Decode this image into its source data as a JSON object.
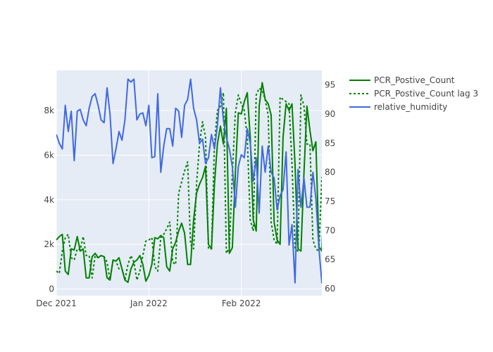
{
  "chart_data": {
    "type": "line",
    "title": "",
    "xlabel": "",
    "ylabel": "",
    "y2label": "",
    "x_range": [
      "2021-12-01",
      "2022-02-28"
    ],
    "x_ticks": [
      {
        "date": "2021-12-01",
        "label": "Dec 2021"
      },
      {
        "date": "2022-01-01",
        "label": "Jan 2022"
      },
      {
        "date": "2022-02-01",
        "label": "Feb 2022"
      }
    ],
    "y_left": {
      "range": [
        -300,
        9800
      ],
      "ticks": [
        0,
        2000,
        4000,
        6000,
        8000
      ],
      "tick_labels": [
        "0",
        "2k",
        "4k",
        "6k",
        "8k"
      ]
    },
    "y_right": {
      "range": [
        58.8,
        97.5
      ],
      "ticks": [
        60,
        65,
        70,
        75,
        80,
        85,
        90,
        95
      ],
      "tick_labels": [
        "60",
        "65",
        "70",
        "75",
        "80",
        "85",
        "90",
        "95"
      ]
    },
    "grid": true,
    "legend_position": "top-right outside",
    "background": "#E5ECF6",
    "series": [
      {
        "name": "PCR_Postive_Count",
        "axis": "left",
        "color": "#008000",
        "dash": "solid",
        "values": [
          2200,
          2350,
          2450,
          800,
          650,
          1800,
          1750,
          2350,
          1700,
          1800,
          500,
          500,
          1450,
          1600,
          1400,
          1500,
          1450,
          500,
          400,
          1300,
          1250,
          1400,
          900,
          400,
          300,
          900,
          1200,
          1300,
          1500,
          1100,
          350,
          600,
          1100,
          2300,
          2250,
          2400,
          2300,
          1000,
          800,
          1800,
          2100,
          2600,
          2950,
          2500,
          1100,
          1100,
          3100,
          4300,
          4700,
          5000,
          5500,
          2000,
          1800,
          4700,
          6500,
          7300,
          6500,
          8100,
          1600,
          1850,
          5200,
          7900,
          7850,
          8400,
          8800,
          6800,
          3100,
          2600,
          8200,
          9250,
          8500,
          8300,
          7800,
          3000,
          2200,
          2000,
          6800,
          8300,
          8000,
          8300,
          5600,
          1800,
          1700,
          5200,
          8200,
          7100,
          6200,
          6600,
          1900,
          1700,
          5000
        ]
      },
      {
        "name": "PCR_Postive_Count lag 3",
        "axis": "left",
        "color": "#008000",
        "dash": "dot",
        "values": [
          800,
          700,
          1700,
          2300,
          2450,
          1400,
          1300,
          1800,
          1750,
          2350,
          1500,
          1500,
          500,
          1500,
          1400,
          1500,
          1450,
          1200,
          400,
          1300,
          1250,
          900,
          900,
          400,
          1100,
          1500,
          1200,
          400,
          800,
          1500,
          2150,
          2200,
          2300,
          1000,
          800,
          2300,
          2450,
          2700,
          3000,
          1200,
          1100,
          4300,
          4800,
          5300,
          5700,
          2000,
          1800,
          4700,
          6500,
          7500,
          6800,
          1800,
          1800,
          6500,
          8000,
          8200,
          8800,
          1600,
          1850,
          5200,
          7900,
          8700,
          8300,
          8000,
          6800,
          3100,
          2600,
          8700,
          9000,
          8900,
          8500,
          7800,
          3000,
          2200,
          2000,
          8600,
          8500,
          8400,
          8300,
          5600,
          1800,
          1700,
          8700,
          8200,
          6500,
          6500,
          2200,
          1800,
          1700,
          5000,
          5000
        ]
      },
      {
        "name": "relative_humidity",
        "axis": "right",
        "color": "#4169E1",
        "dash": "solid",
        "values": [
          86.5,
          85.0,
          84.0,
          91.5,
          87.0,
          90.5,
          82.0,
          90.5,
          90.8,
          89.0,
          88.0,
          91.0,
          93.0,
          93.5,
          91.5,
          89.0,
          88.5,
          94.5,
          90.0,
          81.5,
          84.0,
          87.0,
          85.5,
          89.0,
          96.0,
          95.5,
          96.0,
          89.0,
          90.0,
          90.2,
          88.0,
          91.5,
          82.5,
          82.7,
          93.5,
          80.0,
          84.5,
          87.5,
          87.5,
          84.5,
          91.0,
          90.5,
          86.0,
          91.5,
          92.5,
          96.0,
          91.0,
          89.0,
          85.0,
          85.7,
          81.5,
          82.5,
          86.5,
          84.0,
          88.0,
          94.5,
          89.0,
          86.0,
          84.0,
          81.0,
          74.0,
          81.0,
          83.0,
          82.5,
          87.5,
          85.0,
          78.5,
          82.5,
          73.0,
          84.5,
          80.0,
          84.5,
          80.0,
          79.0,
          73.5,
          76.0,
          77.0,
          83.5,
          67.5,
          71.0,
          61.0,
          80.5,
          74.0,
          79.0,
          74.0,
          74.0,
          80.0,
          75.5,
          67.0,
          61.0,
          60.5
        ]
      }
    ]
  }
}
